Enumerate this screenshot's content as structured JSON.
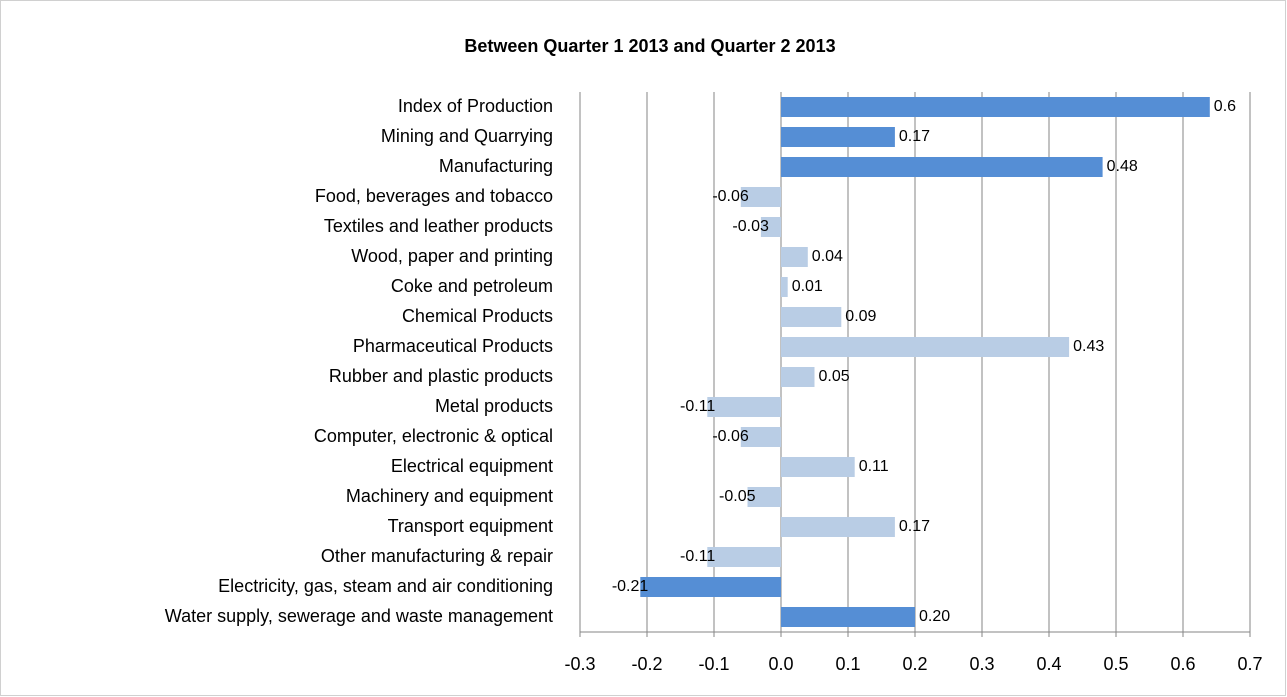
{
  "chart_data": {
    "type": "hbar",
    "title": "Between Quarter 1 2013 and Quarter 2 2013",
    "categories": [
      "Index of Production",
      "Mining and Quarrying",
      "Manufacturing",
      "Food, beverages and tobacco",
      "Textiles and leather products",
      "Wood, paper and printing",
      "Coke and petroleum",
      "Chemical Products",
      "Pharmaceutical Products",
      "Rubber and plastic products",
      "Metal products",
      "Computer, electronic & optical",
      "Electrical equipment",
      "Machinery and equipment",
      "Transport equipment",
      "Other manufacturing & repair",
      "Electricity, gas, steam and air conditioning",
      "Water supply, sewerage and waste management"
    ],
    "values": [
      0.64,
      0.17,
      0.48,
      -0.06,
      -0.03,
      0.04,
      0.01,
      0.09,
      0.43,
      0.05,
      -0.11,
      -0.06,
      0.11,
      -0.05,
      0.17,
      -0.11,
      -0.21,
      0.2
    ],
    "value_labels": [
      "0.6",
      "0.17",
      "0.48",
      "-0.06",
      "-0.03",
      "0.04",
      "0.01",
      "0.09",
      "0.43",
      "0.05",
      "-0.11",
      "-0.06",
      "0.11",
      "-0.05",
      "0.17",
      "-0.11",
      "-0.21",
      "0.20"
    ],
    "colors": [
      "#558ed5",
      "#558ed5",
      "#558ed5",
      "#b9cde5",
      "#b9cde5",
      "#b9cde5",
      "#b9cde5",
      "#b9cde5",
      "#b9cde5",
      "#b9cde5",
      "#b9cde5",
      "#b9cde5",
      "#b9cde5",
      "#b9cde5",
      "#b9cde5",
      "#b9cde5",
      "#558ed5",
      "#558ed5"
    ],
    "xlim": [
      -0.3,
      0.7
    ],
    "xticks": [
      -0.3,
      -0.2,
      -0.1,
      {
        "value": 0,
        "label": "0.0"
      },
      0.1,
      0.2,
      0.3,
      0.4,
      0.5,
      0.6,
      0.7
    ],
    "grid": true
  }
}
